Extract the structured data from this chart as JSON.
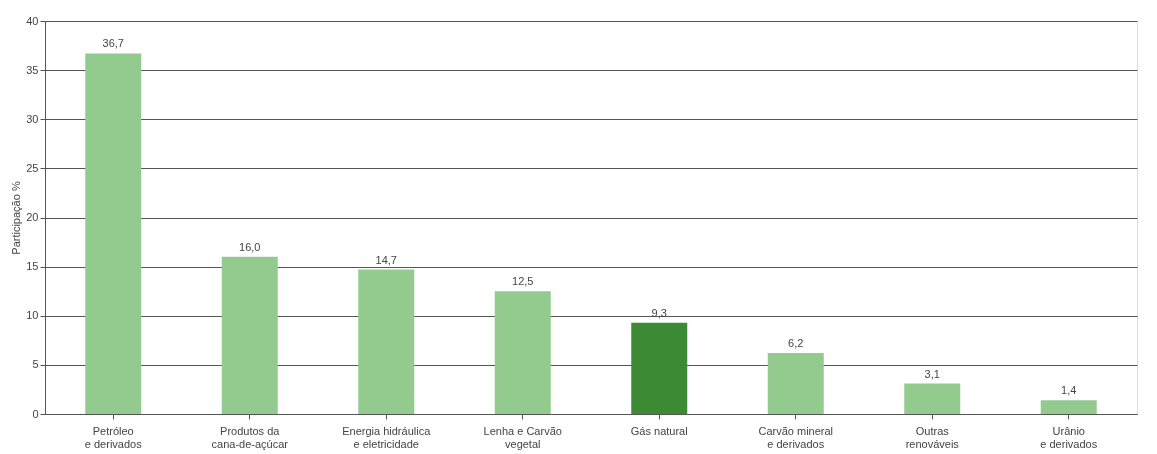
{
  "chart_data": {
    "type": "bar",
    "ylabel": "Participação %",
    "categories": [
      "Petróleo\ne derivados",
      "Produtos da\ncana-de-açúcar",
      "Energia hidráulica\ne eletricidade",
      "Lenha e Carvão\nvegetal",
      "Gás natural",
      "Carvão mineral\ne derivados",
      "Outras\nrenováveis",
      "Urânio\ne derivados"
    ],
    "values": [
      36.7,
      16.0,
      14.7,
      12.5,
      9.3,
      6.2,
      3.1,
      1.4
    ],
    "colors": [
      "#93cb8f",
      "#93cb8f",
      "#93cb8f",
      "#93cb8f",
      "#3d8a35",
      "#93cb8f",
      "#93cb8f",
      "#93cb8f"
    ],
    "value_labels": [
      "36,7",
      "16,0",
      "14,7",
      "12,5",
      "9,3",
      "6,2",
      "3,1",
      "1,4"
    ],
    "ylim": [
      0,
      40
    ],
    "yticks": [
      0,
      5,
      10,
      15,
      20,
      25,
      30,
      35,
      40
    ],
    "grid": "y"
  }
}
